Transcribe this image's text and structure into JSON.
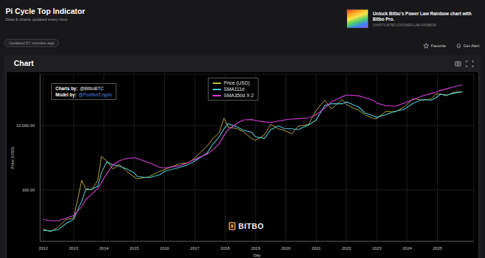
{
  "page": {
    "title": "Pi Cycle Top Indicator",
    "subtitle": "Data & charts updated every hour",
    "updated": "Updated 57 minutes ago",
    "promo": {
      "text": "Unlock Bitbo's Power Law Rainbow chart with Bitbo Pro.",
      "url": "CHARTS.BITBO.IO/POWER-LAW-RAINBOW"
    },
    "buttons": [
      "Favorite",
      "Get Alert"
    ],
    "section": "Chart"
  },
  "chart_data": {
    "type": "line",
    "xlabel": "Day",
    "ylabel": "Price (USD)",
    "annotations": [
      {
        "label": "Charts by:",
        "handle": "@BitboBTC"
      },
      {
        "label": "Model by:",
        "handle": "@PositiveCrypto"
      }
    ],
    "watermark": "BITBO",
    "log": "y",
    "grid": true,
    "legend": "top",
    "xlim": [
      2011.9,
      2026.2
    ],
    "xticks": [
      2012,
      2013,
      2014,
      2015,
      2016,
      2017,
      2018,
      2019,
      2020,
      2021,
      2022,
      2023,
      2024,
      2025
    ],
    "ylim": [
      2.5,
      400000
    ],
    "yticks": [
      {
        "value": 100,
        "label": "100.00"
      },
      {
        "value": 10000,
        "label": "10,000.00"
      }
    ],
    "x": [
      2012.0,
      2012.25,
      2012.5,
      2012.75,
      2013.0,
      2013.27,
      2013.4,
      2013.6,
      2013.8,
      2013.92,
      2014.1,
      2014.3,
      2014.5,
      2014.75,
      2015.0,
      2015.1,
      2015.5,
      2015.85,
      2016.0,
      2016.5,
      2016.8,
      2017.0,
      2017.4,
      2017.6,
      2017.8,
      2017.96,
      2018.1,
      2018.4,
      2018.6,
      2018.87,
      2019.0,
      2019.3,
      2019.5,
      2019.75,
      2019.95,
      2020.2,
      2020.4,
      2020.75,
      2021.0,
      2021.28,
      2021.5,
      2021.86,
      2022.0,
      2022.4,
      2022.6,
      2022.9,
      2023.0,
      2023.3,
      2023.6,
      2023.9,
      2024.2,
      2024.5,
      2024.8,
      2024.95,
      2025.1,
      2025.3,
      2025.5,
      2025.75,
      2025.82
    ],
    "series": [
      {
        "name": "Price (USD)",
        "color": "#d1c13f",
        "values": [
          6,
          5,
          7,
          12,
          13,
          200,
          110,
          100,
          200,
          1100,
          800,
          450,
          620,
          380,
          250,
          220,
          260,
          380,
          430,
          650,
          700,
          1000,
          2300,
          4000,
          6000,
          17000,
          9000,
          8000,
          6500,
          4000,
          3500,
          5200,
          11000,
          8000,
          7200,
          5500,
          9500,
          11000,
          30000,
          62000,
          33000,
          65000,
          45000,
          30000,
          22000,
          16500,
          16800,
          28000,
          27000,
          38000,
          70000,
          62000,
          68000,
          98000,
          95000,
          85000,
          107000,
          115000,
          108000
        ]
      },
      {
        "name": "SMA111d",
        "color": "#4fd1e0",
        "values": [
          5.5,
          5.3,
          5.8,
          9,
          12,
          45,
          100,
          105,
          130,
          350,
          750,
          600,
          550,
          450,
          340,
          260,
          240,
          300,
          380,
          500,
          620,
          800,
          1400,
          2700,
          4500,
          8000,
          11500,
          9000,
          7200,
          6200,
          4500,
          4000,
          7500,
          9800,
          8200,
          8000,
          7500,
          10500,
          15000,
          42000,
          48000,
          48000,
          55000,
          38000,
          25000,
          20000,
          18000,
          22000,
          28000,
          32000,
          50000,
          65000,
          62000,
          75000,
          95000,
          90000,
          100000,
          112000,
          113000
        ]
      },
      {
        "name": "SMA350d X 2",
        "color": "#e040e6",
        "values": [
          12,
          11,
          11,
          13,
          16,
          30,
          50,
          75,
          110,
          170,
          330,
          600,
          800,
          950,
          1000,
          950,
          700,
          500,
          480,
          560,
          720,
          900,
          1300,
          1800,
          2700,
          5000,
          7500,
          12000,
          15000,
          15500,
          14500,
          13000,
          12500,
          14000,
          15000,
          16000,
          16500,
          17500,
          22000,
          35000,
          55000,
          80000,
          90000,
          85000,
          75000,
          60000,
          50000,
          42000,
          40000,
          50000,
          65000,
          85000,
          100000,
          110000,
          125000,
          140000,
          160000,
          180000,
          185000
        ]
      }
    ]
  }
}
